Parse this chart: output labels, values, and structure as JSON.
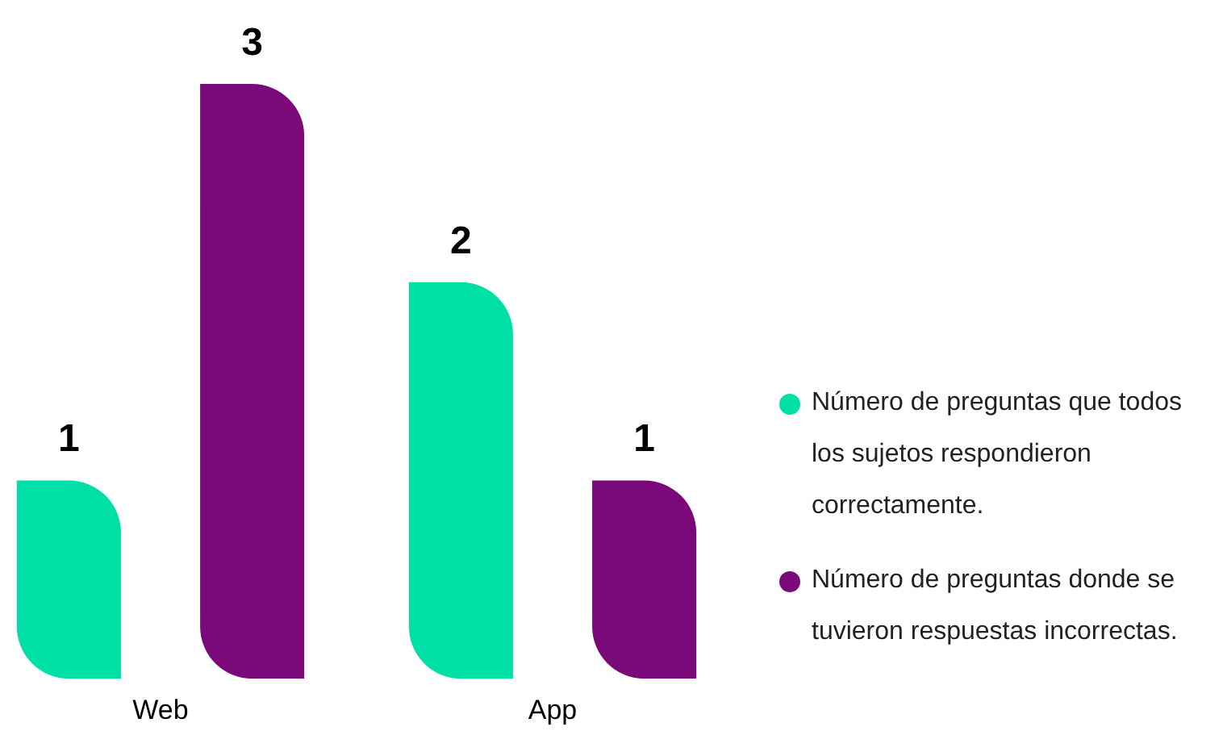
{
  "chart_data": {
    "type": "bar",
    "categories": [
      "Web",
      "App"
    ],
    "series": [
      {
        "name": "Número de preguntas que todos los sujetos respondieron correctamente.",
        "color": "#00e0a6",
        "values": [
          1,
          2
        ]
      },
      {
        "name": "Número de preguntas donde se tuvieron respuestas incorrectas.",
        "color": "#7a0a7a",
        "values": [
          3,
          1
        ]
      }
    ],
    "data_labels": true,
    "legend": "right",
    "tick_labels": "x"
  }
}
